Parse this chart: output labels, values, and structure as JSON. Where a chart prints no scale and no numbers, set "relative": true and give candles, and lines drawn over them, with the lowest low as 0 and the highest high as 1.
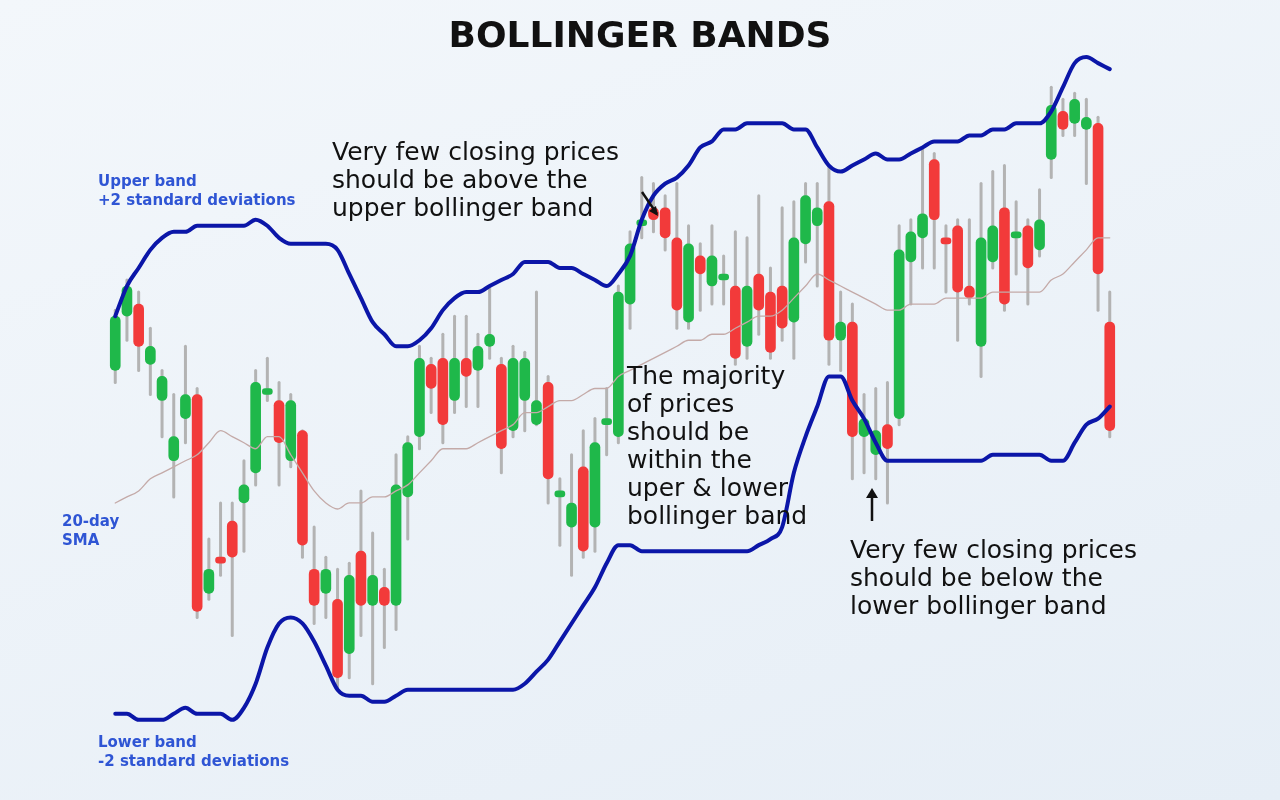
{
  "chart_data": {
    "type": "candlestick",
    "title": "BOLLINGER BANDS",
    "relative": true,
    "legend": false,
    "grid": false,
    "tick_labels": false,
    "categories": [
      null,
      null,
      null,
      null,
      null,
      null,
      null,
      null,
      null,
      null,
      null,
      null,
      null,
      null,
      null,
      null,
      null,
      null,
      null,
      null,
      null,
      null,
      null,
      null,
      null,
      null,
      null,
      null,
      null,
      null,
      null,
      null,
      null,
      null,
      null,
      null,
      null,
      null,
      null,
      null,
      null,
      null,
      null,
      null,
      null,
      null,
      null,
      null,
      null,
      null,
      null,
      null,
      null,
      null,
      null,
      null,
      null,
      null,
      null,
      null,
      null,
      null,
      null,
      null,
      null,
      null,
      null,
      null,
      null,
      null,
      null,
      null,
      null,
      null,
      null,
      null,
      null,
      null,
      null,
      null,
      null,
      null,
      null,
      null,
      null,
      null
    ],
    "ohlc": [
      [
        0.53,
        0.63,
        0.51,
        0.62
      ],
      [
        0.62,
        0.68,
        0.58,
        0.67
      ],
      [
        0.64,
        0.66,
        0.53,
        0.57
      ],
      [
        0.54,
        0.6,
        0.49,
        0.57
      ],
      [
        0.48,
        0.53,
        0.42,
        0.52
      ],
      [
        0.38,
        0.49,
        0.32,
        0.42
      ],
      [
        0.45,
        0.57,
        0.41,
        0.49
      ],
      [
        0.49,
        0.5,
        0.12,
        0.13
      ],
      [
        0.16,
        0.25,
        0.15,
        0.2
      ],
      [
        0.22,
        0.31,
        0.19,
        0.21
      ],
      [
        0.28,
        0.31,
        0.09,
        0.22
      ],
      [
        0.31,
        0.38,
        0.23,
        0.34
      ],
      [
        0.36,
        0.53,
        0.34,
        0.51
      ],
      [
        0.49,
        0.55,
        0.48,
        0.5
      ],
      [
        0.48,
        0.51,
        0.34,
        0.41
      ],
      [
        0.38,
        0.49,
        0.37,
        0.48
      ],
      [
        0.43,
        0.43,
        0.22,
        0.24
      ],
      [
        0.2,
        0.27,
        0.11,
        0.14
      ],
      [
        0.16,
        0.22,
        0.12,
        0.2
      ],
      [
        0.15,
        0.2,
        0,
        0.02
      ],
      [
        0.06,
        0.21,
        0.02,
        0.19
      ],
      [
        0.23,
        0.33,
        0.09,
        0.14
      ],
      [
        0.14,
        0.26,
        0.01,
        0.19
      ],
      [
        0.17,
        0.2,
        0.07,
        0.14
      ],
      [
        0.14,
        0.39,
        0.1,
        0.34
      ],
      [
        0.32,
        0.42,
        0.25,
        0.41
      ],
      [
        0.42,
        0.57,
        0.4,
        0.55
      ],
      [
        0.54,
        0.55,
        0.46,
        0.5
      ],
      [
        0.55,
        0.59,
        0.41,
        0.44
      ],
      [
        0.48,
        0.62,
        0.46,
        0.55
      ],
      [
        0.55,
        0.62,
        0.47,
        0.52
      ],
      [
        0.53,
        0.59,
        0.47,
        0.57
      ],
      [
        0.57,
        0.67,
        0.55,
        0.59
      ],
      [
        0.54,
        0.55,
        0.36,
        0.4
      ],
      [
        0.43,
        0.57,
        0.42,
        0.55
      ],
      [
        0.48,
        0.56,
        0.43,
        0.55
      ],
      [
        0.44,
        0.66,
        0.44,
        0.48
      ],
      [
        0.51,
        0.52,
        0.31,
        0.35
      ],
      [
        0.32,
        0.35,
        0.24,
        0.33
      ],
      [
        0.27,
        0.39,
        0.19,
        0.31
      ],
      [
        0.37,
        0.43,
        0.22,
        0.23
      ],
      [
        0.27,
        0.45,
        0.23,
        0.41
      ],
      [
        0.44,
        0.5,
        0.39,
        0.45
      ],
      [
        0.42,
        0.67,
        0.41,
        0.66
      ],
      [
        0.64,
        0.76,
        0.6,
        0.74
      ],
      [
        0.77,
        0.85,
        0.75,
        0.78
      ],
      [
        0.8,
        0.84,
        0.76,
        0.78
      ],
      [
        0.8,
        0.82,
        0.73,
        0.75
      ],
      [
        0.75,
        0.84,
        0.6,
        0.63
      ],
      [
        0.61,
        0.77,
        0.6,
        0.74
      ],
      [
        0.72,
        0.74,
        0.63,
        0.69
      ],
      [
        0.67,
        0.77,
        0.64,
        0.72
      ],
      [
        0.68,
        0.72,
        0.64,
        0.69
      ],
      [
        0.67,
        0.76,
        0.54,
        0.55
      ],
      [
        0.57,
        0.75,
        0.55,
        0.67
      ],
      [
        0.69,
        0.82,
        0.59,
        0.63
      ],
      [
        0.66,
        0.7,
        0.55,
        0.56
      ],
      [
        0.67,
        0.8,
        0.58,
        0.6
      ],
      [
        0.61,
        0.81,
        0.55,
        0.75
      ],
      [
        0.74,
        0.84,
        0.71,
        0.82
      ],
      [
        0.77,
        0.84,
        0.67,
        0.8
      ],
      [
        0.81,
        0.87,
        0.54,
        0.58
      ],
      [
        0.58,
        0.66,
        0.53,
        0.61
      ],
      [
        0.61,
        0.64,
        0.35,
        0.42
      ],
      [
        0.42,
        0.49,
        0.36,
        0.45
      ],
      [
        0.39,
        0.5,
        0.35,
        0.43
      ],
      [
        0.44,
        0.51,
        0.31,
        0.4
      ],
      [
        0.45,
        0.77,
        0.44,
        0.73
      ],
      [
        0.71,
        0.78,
        0.64,
        0.76
      ],
      [
        0.75,
        0.9,
        0.7,
        0.79
      ],
      [
        0.88,
        0.89,
        0.7,
        0.78
      ],
      [
        0.75,
        0.77,
        0.66,
        0.74
      ],
      [
        0.77,
        0.78,
        0.58,
        0.66
      ],
      [
        0.67,
        0.78,
        0.64,
        0.65
      ],
      [
        0.57,
        0.84,
        0.52,
        0.75
      ],
      [
        0.71,
        0.86,
        0.7,
        0.77
      ],
      [
        0.8,
        0.87,
        0.63,
        0.64
      ],
      [
        0.75,
        0.81,
        0.69,
        0.76
      ],
      [
        0.77,
        0.78,
        0.64,
        0.7
      ],
      [
        0.73,
        0.83,
        0.72,
        0.78
      ],
      [
        0.88,
        1.0,
        0.85,
        0.97
      ],
      [
        0.96,
        0.98,
        0.92,
        0.93
      ],
      [
        0.94,
        0.99,
        0.92,
        0.98
      ],
      [
        0.93,
        0.98,
        0.84,
        0.95
      ],
      [
        0.94,
        0.95,
        0.63,
        0.69
      ],
      [
        0.61,
        0.66,
        0.42,
        0.43
      ]
    ],
    "colors": [
      "#1fb84a",
      "#1fb84a",
      "#f23a3a",
      "#1fb84a",
      "#1fb84a",
      "#1fb84a",
      "#1fb84a",
      "#f23a3a",
      "#1fb84a",
      "#f23a3a",
      "#f23a3a",
      "#1fb84a",
      "#1fb84a",
      "#1fb84a",
      "#f23a3a",
      "#1fb84a",
      "#f23a3a",
      "#f23a3a",
      "#1fb84a",
      "#f23a3a",
      "#1fb84a",
      "#f23a3a",
      "#1fb84a",
      "#f23a3a",
      "#1fb84a",
      "#1fb84a",
      "#1fb84a",
      "#f23a3a",
      "#f23a3a",
      "#1fb84a",
      "#f23a3a",
      "#1fb84a",
      "#1fb84a",
      "#f23a3a",
      "#1fb84a",
      "#1fb84a",
      "#1fb84a",
      "#f23a3a",
      "#1fb84a",
      "#1fb84a",
      "#f23a3a",
      "#1fb84a",
      "#1fb84a",
      "#1fb84a",
      "#1fb84a",
      "#1fb84a",
      "#f23a3a",
      "#f23a3a",
      "#f23a3a",
      "#1fb84a",
      "#f23a3a",
      "#1fb84a",
      "#1fb84a",
      "#f23a3a",
      "#1fb84a",
      "#f23a3a",
      "#f23a3a",
      "#f23a3a",
      "#1fb84a",
      "#1fb84a",
      "#1fb84a",
      "#f23a3a",
      "#1fb84a",
      "#f23a3a",
      "#1fb84a",
      "#1fb84a",
      "#f23a3a",
      "#1fb84a",
      "#1fb84a",
      "#1fb84a",
      "#f23a3a",
      "#f23a3a",
      "#f23a3a",
      "#f23a3a",
      "#1fb84a",
      "#1fb84a",
      "#f23a3a",
      "#1fb84a",
      "#f23a3a",
      "#1fb84a",
      "#1fb84a",
      "#f23a3a",
      "#1fb84a",
      "#1fb84a",
      "#f23a3a",
      "#f23a3a"
    ],
    "series": [
      {
        "type": "line",
        "name": "Upper band\n+2 standard deviations",
        "color": "#0b16a8",
        "values": [
          0.62,
          0.67,
          0.7,
          0.73,
          0.75,
          0.76,
          0.76,
          0.77,
          0.77,
          0.77,
          0.77,
          0.77,
          0.78,
          0.77,
          0.75,
          0.74,
          0.74,
          0.74,
          0.74,
          0.73,
          0.69,
          0.65,
          0.61,
          0.59,
          0.57,
          0.57,
          0.58,
          0.6,
          0.63,
          0.65,
          0.66,
          0.66,
          0.67,
          0.68,
          0.69,
          0.71,
          0.71,
          0.71,
          0.7,
          0.7,
          0.69,
          0.68,
          0.67,
          0.69,
          0.72,
          0.78,
          0.82,
          0.84,
          0.85,
          0.87,
          0.9,
          0.91,
          0.93,
          0.93,
          0.94,
          0.94,
          0.94,
          0.94,
          0.93,
          0.93,
          0.9,
          0.87,
          0.86,
          0.87,
          0.88,
          0.89,
          0.88,
          0.88,
          0.89,
          0.9,
          0.91,
          0.91,
          0.91,
          0.92,
          0.92,
          0.93,
          0.93,
          0.94,
          0.94,
          0.94,
          0.96,
          1.0,
          1.04,
          1.05,
          1.04,
          1.03
        ]
      },
      {
        "type": "line",
        "name": "20-day\nSMA",
        "color": "#c4aaa8",
        "values": [
          0.31,
          0.32,
          0.33,
          0.35,
          0.36,
          0.37,
          0.38,
          0.39,
          0.41,
          0.43,
          0.42,
          0.41,
          0.4,
          0.42,
          0.42,
          0.39,
          0.36,
          0.33,
          0.31,
          0.3,
          0.31,
          0.31,
          0.32,
          0.32,
          0.33,
          0.34,
          0.36,
          0.38,
          0.4,
          0.4,
          0.4,
          0.41,
          0.42,
          0.43,
          0.44,
          0.46,
          0.46,
          0.47,
          0.48,
          0.48,
          0.49,
          0.5,
          0.5,
          0.52,
          0.53,
          0.54,
          0.55,
          0.56,
          0.57,
          0.58,
          0.58,
          0.59,
          0.59,
          0.6,
          0.61,
          0.62,
          0.62,
          0.63,
          0.65,
          0.67,
          0.69,
          0.68,
          0.67,
          0.66,
          0.65,
          0.64,
          0.63,
          0.63,
          0.64,
          0.64,
          0.64,
          0.65,
          0.65,
          0.65,
          0.65,
          0.66,
          0.66,
          0.66,
          0.66,
          0.66,
          0.68,
          0.69,
          0.71,
          0.73,
          0.75,
          0.75
        ]
      },
      {
        "type": "line",
        "name": "Lower band\n-2 standard deviations",
        "color": "#0b16a8",
        "values": [
          -0.04,
          -0.04,
          -0.05,
          -0.05,
          -0.05,
          -0.04,
          -0.03,
          -0.04,
          -0.04,
          -0.04,
          -0.05,
          -0.03,
          0.01,
          0.07,
          0.11,
          0.12,
          0.11,
          0.08,
          0.04,
          0,
          -0.01,
          -0.01,
          -0.02,
          -0.02,
          -0.01,
          0,
          0,
          0,
          0,
          0,
          0,
          0,
          0,
          0,
          0,
          0.01,
          0.03,
          0.05,
          0.08,
          0.11,
          0.14,
          0.17,
          0.21,
          0.24,
          0.24,
          0.23,
          0.23,
          0.23,
          0.23,
          0.23,
          0.23,
          0.23,
          0.23,
          0.23,
          0.23,
          0.24,
          0.25,
          0.27,
          0.36,
          0.42,
          0.47,
          0.52,
          0.52,
          0.48,
          0.45,
          0.41,
          0.38,
          0.38,
          0.38,
          0.38,
          0.38,
          0.38,
          0.38,
          0.38,
          0.38,
          0.39,
          0.39,
          0.39,
          0.39,
          0.39,
          0.38,
          0.38,
          0.41,
          0.44,
          0.45,
          0.47
        ]
      }
    ],
    "annotations": [
      "Very few closing prices\nshould be above the\nupper bollinger band",
      "The majority\nof prices\nshould be\nwithin the\nuper & lower\nbollinger band",
      "Very few closing prices\nshould be below the\nlower bollinger band"
    ]
  }
}
